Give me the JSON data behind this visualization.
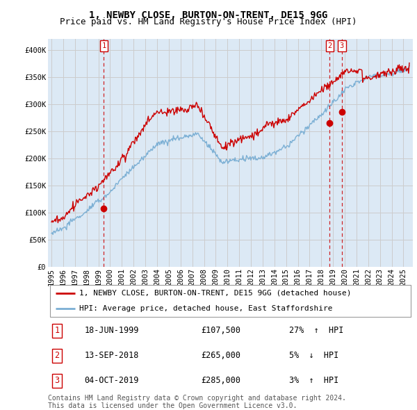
{
  "title": "1, NEWBY CLOSE, BURTON-ON-TRENT, DE15 9GG",
  "subtitle": "Price paid vs. HM Land Registry's House Price Index (HPI)",
  "ylim": [
    0,
    420000
  ],
  "yticks": [
    0,
    50000,
    100000,
    150000,
    200000,
    250000,
    300000,
    350000,
    400000
  ],
  "ytick_labels": [
    "£0",
    "£50K",
    "£100K",
    "£150K",
    "£200K",
    "£250K",
    "£300K",
    "£350K",
    "£400K"
  ],
  "red_line_color": "#cc0000",
  "blue_line_color": "#7bafd4",
  "grid_color": "#cccccc",
  "chart_bg_color": "#dce9f5",
  "background_color": "#ffffff",
  "legend_red_label": "1, NEWBY CLOSE, BURTON-ON-TRENT, DE15 9GG (detached house)",
  "legend_blue_label": "HPI: Average price, detached house, East Staffordshire",
  "transactions": [
    {
      "num": 1,
      "date": "18-JUN-1999",
      "price": 107500,
      "pct": "27%",
      "dir": "↑",
      "year": 1999.46
    },
    {
      "num": 2,
      "date": "13-SEP-2018",
      "price": 265000,
      "pct": "5%",
      "dir": "↓",
      "year": 2018.71
    },
    {
      "num": 3,
      "date": "04-OCT-2019",
      "price": 285000,
      "pct": "3%",
      "dir": "↑",
      "year": 2019.75
    }
  ],
  "copyright_text": "Contains HM Land Registry data © Crown copyright and database right 2024.\nThis data is licensed under the Open Government Licence v3.0.",
  "title_fontsize": 10,
  "subtitle_fontsize": 9,
  "tick_fontsize": 7.5,
  "legend_fontsize": 8,
  "table_fontsize": 8.5,
  "copyright_fontsize": 7
}
